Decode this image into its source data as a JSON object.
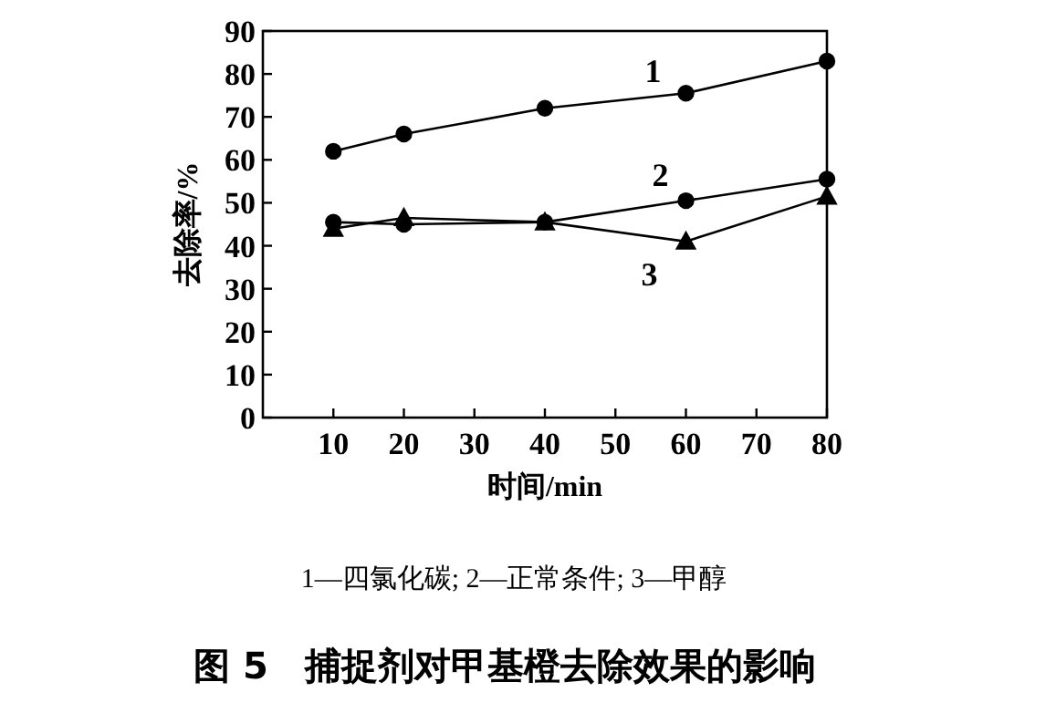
{
  "chart_data": {
    "type": "line",
    "title": "图 5　捕捉剂对甲基橙去除效果的影响",
    "xlabel": "时间/min",
    "ylabel": "去除率/%",
    "x": [
      10,
      20,
      40,
      60,
      80
    ],
    "series": [
      {
        "name": "1",
        "color": "#000000",
        "marker": "circle",
        "values": [
          62,
          66,
          72,
          75.5,
          83
        ]
      },
      {
        "name": "2",
        "color": "#000000",
        "marker": "circle",
        "values": [
          45.5,
          45,
          45.5,
          50.5,
          55.5
        ]
      },
      {
        "name": "3",
        "color": "#000000",
        "marker": "triangle",
        "values": [
          44,
          46.5,
          45.5,
          41,
          51.5
        ]
      }
    ],
    "xlim": [
      0,
      80
    ],
    "xticks": [
      10,
      20,
      30,
      40,
      50,
      60,
      70,
      80
    ],
    "ylim": [
      0,
      90
    ],
    "yticks": [
      0,
      10,
      20,
      30,
      40,
      50,
      60,
      70,
      80,
      90
    ],
    "grid": false,
    "annotations": [
      "1—四氯化碳; 2—正常条件; 3—甲醇"
    ]
  }
}
